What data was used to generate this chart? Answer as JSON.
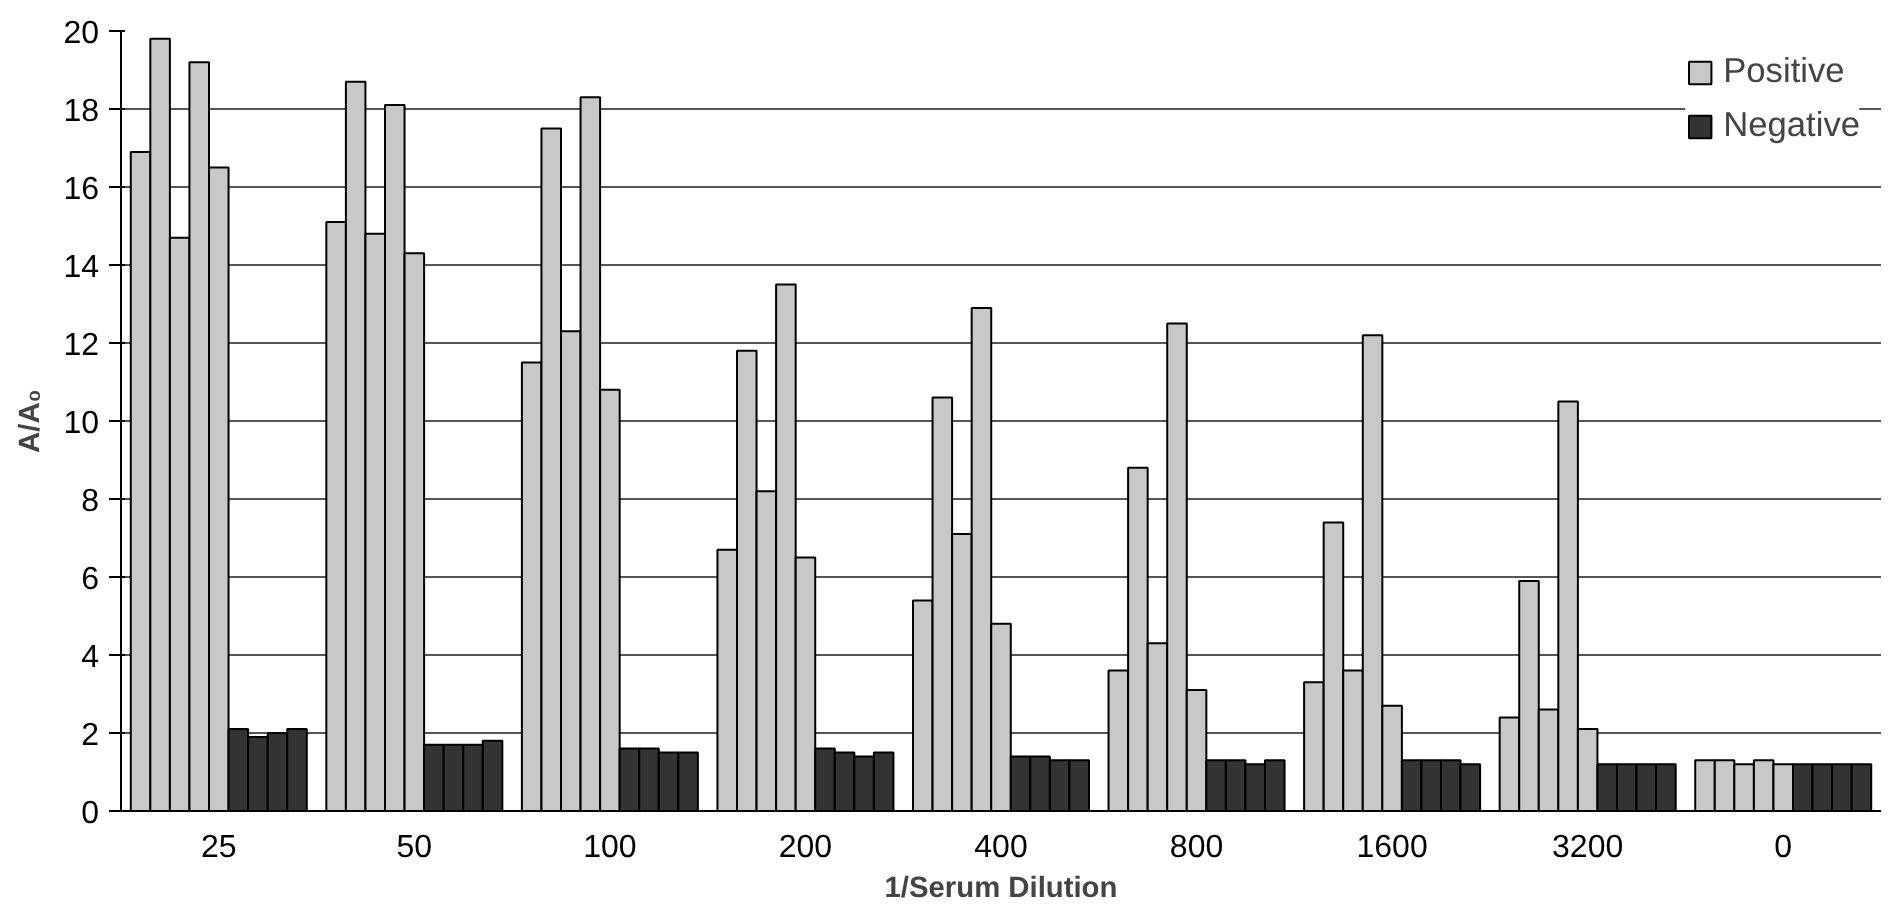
{
  "chart_data": {
    "type": "bar",
    "xlabel": "1/Serum Dilution",
    "ylabel": "A/A₀",
    "categories": [
      "25",
      "50",
      "100",
      "200",
      "400",
      "800",
      "1600",
      "3200",
      "0"
    ],
    "ylim": [
      0,
      20
    ],
    "yticks": [
      0,
      2,
      4,
      6,
      8,
      10,
      12,
      14,
      16,
      18,
      20
    ],
    "grid": "y",
    "legend": "top right",
    "series": [
      {
        "name": "Positive",
        "color": "#c8c8c8",
        "values": [
          16.9,
          15.1,
          11.5,
          6.7,
          5.4,
          3.6,
          3.3,
          2.4,
          1.3
        ]
      },
      {
        "color": "#c8c8c8",
        "values": [
          19.8,
          18.7,
          17.5,
          11.8,
          10.6,
          8.8,
          7.4,
          5.9,
          1.3
        ]
      },
      {
        "color": "#c8c8c8",
        "values": [
          14.7,
          14.8,
          12.3,
          8.2,
          7.1,
          4.3,
          3.6,
          2.6,
          1.2
        ]
      },
      {
        "color": "#c8c8c8",
        "values": [
          19.2,
          18.1,
          18.3,
          13.5,
          12.9,
          12.5,
          12.2,
          10.5,
          1.3
        ]
      },
      {
        "color": "#c8c8c8",
        "values": [
          16.5,
          14.3,
          10.8,
          6.5,
          4.8,
          3.1,
          2.7,
          2.1,
          1.2
        ]
      },
      {
        "name": "Negative",
        "color": "#333333",
        "values": [
          2.1,
          1.7,
          1.6,
          1.6,
          1.4,
          1.3,
          1.3,
          1.2,
          1.2
        ]
      },
      {
        "color": "#333333",
        "values": [
          1.9,
          1.7,
          1.6,
          1.5,
          1.4,
          1.3,
          1.3,
          1.2,
          1.2
        ]
      },
      {
        "color": "#333333",
        "values": [
          2.0,
          1.7,
          1.5,
          1.4,
          1.3,
          1.2,
          1.3,
          1.2,
          1.2
        ]
      },
      {
        "color": "#333333",
        "values": [
          2.1,
          1.8,
          1.5,
          1.5,
          1.3,
          1.3,
          1.2,
          1.2,
          1.2
        ]
      }
    ]
  }
}
